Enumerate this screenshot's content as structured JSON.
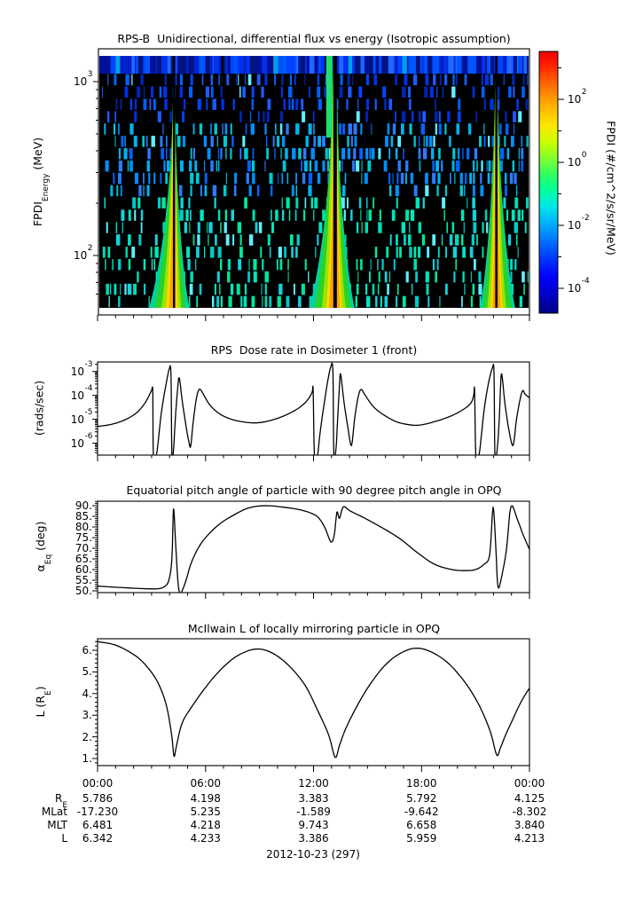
{
  "xaxis": {
    "time_labels": [
      "00:00",
      "06:00",
      "12:00",
      "18:00",
      "00:00"
    ],
    "major_hours": [
      0,
      6,
      12,
      18,
      24
    ],
    "rows": [
      {
        "label": "R",
        "sub": "E",
        "values": [
          "5.786",
          "4.198",
          "3.383",
          "5.792",
          "4.125"
        ]
      },
      {
        "label": "MLat",
        "sub": "",
        "values": [
          "-17.230",
          "5.235",
          "-1.589",
          "-9.642",
          "-8.302"
        ]
      },
      {
        "label": "MLT",
        "sub": "",
        "values": [
          "6.481",
          "4.218",
          "9.743",
          "6.658",
          "3.840"
        ]
      },
      {
        "label": "L",
        "sub": "",
        "values": [
          "6.342",
          "4.233",
          "3.386",
          "5.959",
          "4.213"
        ]
      }
    ],
    "date_label": "2012-10-23 (297)"
  },
  "chart_data": [
    {
      "type": "heatmap",
      "title": "RPS-B  Unidirectional, differential flux vs energy (Isotropic assumption)",
      "ylabel_pre": "FPDI",
      "ylabel_sub": "Energy",
      "ylabel_post": " (MeV)",
      "y_scale": "log",
      "y_range_MeV": [
        50,
        1400
      ],
      "yticks": [
        {
          "v": 1000,
          "exp": "3"
        },
        {
          "v": 100,
          "exp": "2"
        }
      ],
      "yminors": [
        60,
        70,
        80,
        90,
        200,
        300,
        400,
        500,
        600,
        700,
        800,
        900
      ],
      "x_range_hours": [
        0,
        24
      ],
      "top_band": "solid blue band at highest energy bin (~1300 MeV) across full day",
      "background": "black with sparse blue/cyan vertical noise dashes (low flux counts)",
      "flux_enhancement_center_hours": [
        4.25,
        13.2,
        22.16
      ],
      "flux_enhancement_note": "funnel-shaped green/yellow high-flux bands widening toward low energy at each perigee pass, with narrow black data-gap at center",
      "colorbar": {
        "label": "FPDI (#/cm^2/s/sr/MeV)",
        "scale": "log",
        "ticks": [
          {
            "e": 2,
            "exp": "2"
          },
          {
            "e": 0,
            "exp": "0"
          },
          {
            "e": -2,
            "exp": "-2"
          },
          {
            "e": -4,
            "exp": "-4"
          }
        ],
        "minor_exps": [
          3,
          1,
          -1,
          -3
        ],
        "colormap": "rainbow",
        "colors_bottom_to_top": [
          "#000082",
          "#0000ff",
          "#00a4ff",
          "#00e8e8",
          "#30ff60",
          "#c8ff00",
          "#ffe600",
          "#ffaa00",
          "#ff6400",
          "#f00000"
        ]
      }
    },
    {
      "type": "line",
      "title": "RPS  Dose rate in Dosimeter 1 (front)",
      "ylabel": "(rads/sec)",
      "y_scale": "log",
      "yticks": [
        {
          "v": -3,
          "exp": "-3"
        },
        {
          "v": -4,
          "exp": "-4"
        },
        {
          "v": -5,
          "exp": "-5"
        },
        {
          "v": -6,
          "exp": "-6"
        }
      ],
      "line_color": "#000000",
      "series_x_hours_y_log10": [
        [
          0,
          -5.3
        ],
        [
          0.72,
          -5.22
        ],
        [
          1.44,
          -5.05
        ],
        [
          2.04,
          -4.8
        ],
        [
          2.4,
          -4.55
        ],
        [
          2.69,
          -4.25
        ],
        [
          2.9,
          -3.95
        ],
        [
          3.0,
          -3.8
        ],
        [
          3.07,
          -3.85
        ],
        [
          3.1,
          -6.5
        ],
        [
          3.26,
          -6.5
        ],
        [
          3.36,
          -6.0
        ],
        [
          3.5,
          -5.0
        ],
        [
          3.65,
          -4.2
        ],
        [
          3.84,
          -3.4
        ],
        [
          3.98,
          -2.9
        ],
        [
          4.08,
          -3.1
        ],
        [
          4.13,
          -6.5
        ],
        [
          4.22,
          -6.3
        ],
        [
          4.32,
          -5.0
        ],
        [
          4.44,
          -3.8
        ],
        [
          4.54,
          -3.26
        ],
        [
          4.7,
          -4.2
        ],
        [
          4.92,
          -5.3
        ],
        [
          5.09,
          -6.0
        ],
        [
          5.18,
          -6.1
        ],
        [
          5.33,
          -5.0
        ],
        [
          5.5,
          -4.1
        ],
        [
          5.66,
          -3.74
        ],
        [
          5.88,
          -3.95
        ],
        [
          6.24,
          -4.4
        ],
        [
          6.84,
          -4.8
        ],
        [
          7.68,
          -5.05
        ],
        [
          8.81,
          -5.15
        ],
        [
          9.84,
          -5.0
        ],
        [
          10.8,
          -4.7
        ],
        [
          11.4,
          -4.4
        ],
        [
          11.76,
          -4.1
        ],
        [
          11.93,
          -3.85
        ],
        [
          11.98,
          -3.8
        ],
        [
          12.05,
          -6.5
        ],
        [
          12.22,
          -6.5
        ],
        [
          12.36,
          -5.6
        ],
        [
          12.58,
          -4.4
        ],
        [
          12.79,
          -3.4
        ],
        [
          12.96,
          -2.8
        ],
        [
          13.08,
          -3.0
        ],
        [
          13.13,
          -6.5
        ],
        [
          13.25,
          -6.2
        ],
        [
          13.34,
          -5.0
        ],
        [
          13.44,
          -3.6
        ],
        [
          13.51,
          -3.1
        ],
        [
          13.68,
          -4.2
        ],
        [
          13.92,
          -5.4
        ],
        [
          14.11,
          -6.1
        ],
        [
          14.28,
          -5.0
        ],
        [
          14.47,
          -4.1
        ],
        [
          14.64,
          -3.75
        ],
        [
          14.88,
          -4.0
        ],
        [
          15.36,
          -4.5
        ],
        [
          16.08,
          -4.9
        ],
        [
          16.8,
          -5.15
        ],
        [
          17.78,
          -5.25
        ],
        [
          18.72,
          -5.1
        ],
        [
          19.68,
          -4.85
        ],
        [
          20.4,
          -4.55
        ],
        [
          20.76,
          -4.3
        ],
        [
          20.9,
          -4.0
        ],
        [
          20.95,
          -3.8
        ],
        [
          21.02,
          -6.5
        ],
        [
          21.19,
          -6.5
        ],
        [
          21.31,
          -5.8
        ],
        [
          21.48,
          -4.6
        ],
        [
          21.72,
          -3.5
        ],
        [
          21.94,
          -2.85
        ],
        [
          22.03,
          -3.05
        ],
        [
          22.08,
          -6.5
        ],
        [
          22.2,
          -6.3
        ],
        [
          22.32,
          -5.0
        ],
        [
          22.39,
          -3.7
        ],
        [
          22.46,
          -3.1
        ],
        [
          22.63,
          -4.3
        ],
        [
          22.87,
          -5.5
        ],
        [
          23.09,
          -6.1
        ],
        [
          23.28,
          -5.0
        ],
        [
          23.47,
          -4.2
        ],
        [
          23.62,
          -3.8
        ],
        [
          23.76,
          -3.95
        ],
        [
          24,
          -4.1
        ]
      ]
    },
    {
      "type": "line",
      "title": "Equatorial pitch angle of particle with 90 degree pitch angle in OPQ",
      "ylabel_pre": "α",
      "ylabel_sub": "Eq",
      "ylabel_post": " (deg)",
      "yticks": [
        {
          "v": 90,
          "t": "90."
        },
        {
          "v": 85,
          "t": "85."
        },
        {
          "v": 80,
          "t": "80."
        },
        {
          "v": 75,
          "t": "75."
        },
        {
          "v": 70,
          "t": "70."
        },
        {
          "v": 65,
          "t": "65."
        },
        {
          "v": 60,
          "t": "60."
        },
        {
          "v": 55,
          "t": "55."
        },
        {
          "v": 50,
          "t": "50."
        }
      ],
      "line_color": "#000000",
      "series_x_hours_y_deg": [
        [
          0,
          52.2
        ],
        [
          1.44,
          51.5
        ],
        [
          2.64,
          51.0
        ],
        [
          3.36,
          51.0
        ],
        [
          3.72,
          52
        ],
        [
          3.96,
          55
        ],
        [
          4.13,
          65
        ],
        [
          4.22,
          88.5
        ],
        [
          4.32,
          75
        ],
        [
          4.46,
          55
        ],
        [
          4.58,
          48.5
        ],
        [
          4.7,
          50
        ],
        [
          4.92,
          55
        ],
        [
          5.16,
          62
        ],
        [
          5.52,
          69
        ],
        [
          6.0,
          75
        ],
        [
          6.72,
          81
        ],
        [
          7.44,
          85
        ],
        [
          8.38,
          88.9
        ],
        [
          9.36,
          90
        ],
        [
          10.32,
          89.3
        ],
        [
          11.28,
          88
        ],
        [
          12.0,
          86
        ],
        [
          12.36,
          83.5
        ],
        [
          12.67,
          79
        ],
        [
          12.96,
          73
        ],
        [
          13.15,
          76
        ],
        [
          13.3,
          87
        ],
        [
          13.44,
          84
        ],
        [
          13.66,
          89.5
        ],
        [
          14.04,
          87.5
        ],
        [
          14.88,
          84
        ],
        [
          15.84,
          79.5
        ],
        [
          16.8,
          74.5
        ],
        [
          17.76,
          68
        ],
        [
          18.72,
          62.5
        ],
        [
          19.68,
          60
        ],
        [
          20.4,
          59.5
        ],
        [
          21.0,
          60
        ],
        [
          21.48,
          62.5
        ],
        [
          21.79,
          67
        ],
        [
          21.98,
          89.3
        ],
        [
          22.13,
          70
        ],
        [
          22.25,
          51.8
        ],
        [
          22.46,
          57
        ],
        [
          22.73,
          70
        ],
        [
          22.97,
          89.6
        ],
        [
          23.33,
          83.5
        ],
        [
          23.66,
          76
        ],
        [
          24,
          69.5
        ]
      ]
    },
    {
      "type": "line",
      "title": "McIlwain L of locally mirroring particle in OPQ",
      "ylabel_pre": "L (R",
      "ylabel_sub": "E",
      "ylabel_post": ")",
      "yticks": [
        {
          "v": 6,
          "t": "6."
        },
        {
          "v": 5,
          "t": "5."
        },
        {
          "v": 4,
          "t": "4."
        },
        {
          "v": 3,
          "t": "3."
        },
        {
          "v": 2,
          "t": "2."
        },
        {
          "v": 1,
          "t": "1."
        }
      ],
      "line_color": "#000000",
      "series_x_hours_y_L": [
        [
          0,
          6.4
        ],
        [
          0.96,
          6.25
        ],
        [
          1.92,
          5.85
        ],
        [
          2.64,
          5.35
        ],
        [
          3.36,
          4.5
        ],
        [
          3.84,
          3.4
        ],
        [
          4.13,
          2.0
        ],
        [
          4.25,
          1.1
        ],
        [
          4.39,
          1.6
        ],
        [
          4.68,
          2.6
        ],
        [
          5.16,
          3.3
        ],
        [
          5.88,
          4.15
        ],
        [
          6.72,
          5.0
        ],
        [
          7.68,
          5.7
        ],
        [
          8.71,
          6.05
        ],
        [
          9.6,
          5.92
        ],
        [
          10.56,
          5.35
        ],
        [
          11.52,
          4.4
        ],
        [
          12.24,
          3.2
        ],
        [
          12.84,
          2.1
        ],
        [
          13.2,
          1.05
        ],
        [
          13.44,
          1.6
        ],
        [
          13.8,
          2.4
        ],
        [
          14.4,
          3.4
        ],
        [
          15.12,
          4.4
        ],
        [
          15.96,
          5.3
        ],
        [
          16.8,
          5.85
        ],
        [
          17.69,
          6.1
        ],
        [
          18.6,
          5.9
        ],
        [
          19.56,
          5.35
        ],
        [
          20.52,
          4.4
        ],
        [
          21.24,
          3.4
        ],
        [
          21.84,
          2.2
        ],
        [
          22.18,
          1.15
        ],
        [
          22.39,
          1.5
        ],
        [
          22.68,
          2.1
        ],
        [
          23.04,
          2.75
        ],
        [
          23.52,
          3.6
        ],
        [
          24,
          4.25
        ]
      ]
    }
  ]
}
